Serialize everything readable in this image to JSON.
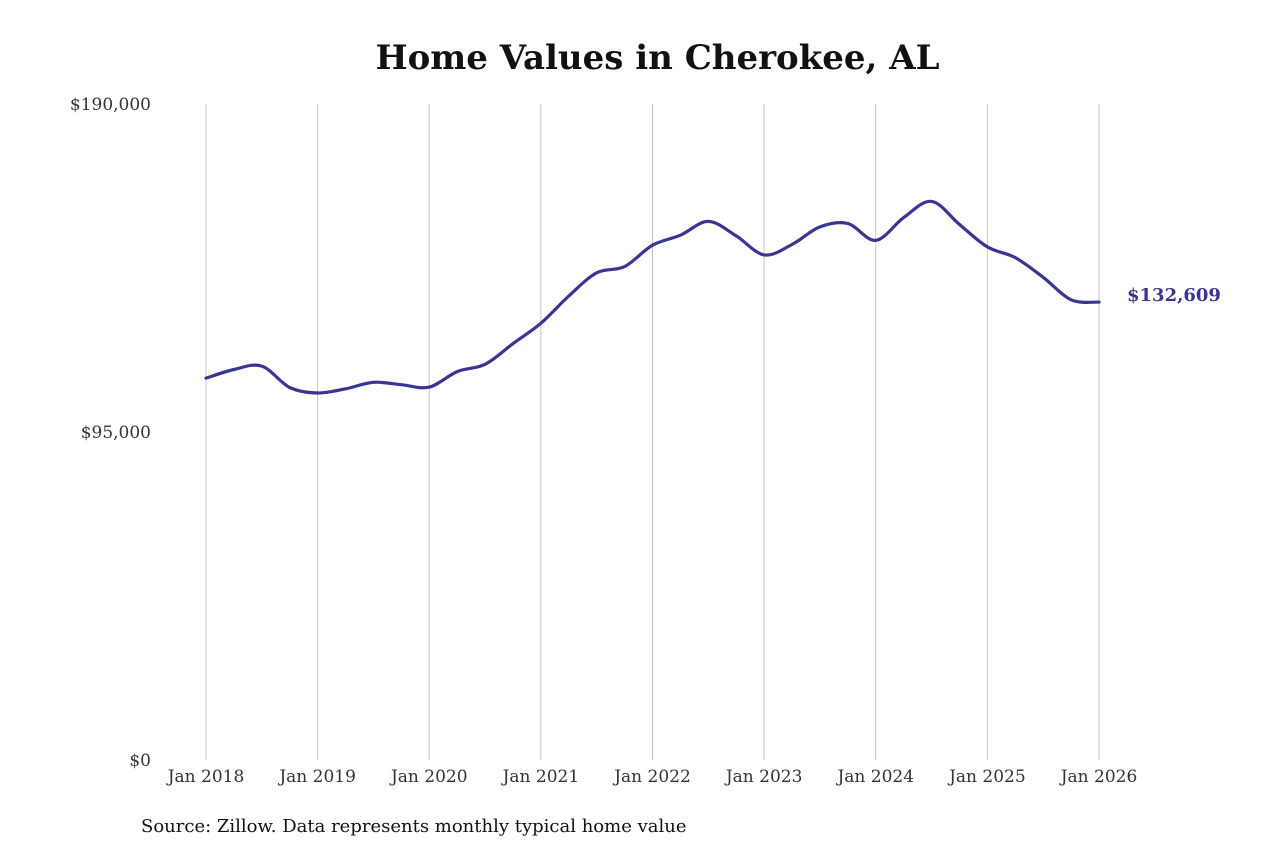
{
  "chart_data": {
    "type": "line",
    "title": "Home Values in Cherokee, AL",
    "xlabel": "",
    "ylabel": "",
    "ylim": [
      0,
      190000
    ],
    "y_ticks": [
      {
        "value": 0,
        "label": "$0"
      },
      {
        "value": 95000,
        "label": "$95,000"
      },
      {
        "value": 190000,
        "label": "$190,000"
      }
    ],
    "x_ticks": [
      {
        "value": "2018-01",
        "label": "Jan 2018"
      },
      {
        "value": "2019-01",
        "label": "Jan 2019"
      },
      {
        "value": "2020-01",
        "label": "Jan 2020"
      },
      {
        "value": "2021-01",
        "label": "Jan 2021"
      },
      {
        "value": "2022-01",
        "label": "Jan 2022"
      },
      {
        "value": "2023-01",
        "label": "Jan 2023"
      },
      {
        "value": "2024-01",
        "label": "Jan 2024"
      },
      {
        "value": "2025-01",
        "label": "Jan 2025"
      },
      {
        "value": "2026-01",
        "label": "Jan 2026"
      }
    ],
    "grid": {
      "vertical": true,
      "horizontal": false
    },
    "series": [
      {
        "color": "#3b3592",
        "x": [
          "2018-01",
          "2018-04",
          "2018-07",
          "2018-10",
          "2019-01",
          "2019-04",
          "2019-07",
          "2019-10",
          "2020-01",
          "2020-04",
          "2020-07",
          "2020-10",
          "2021-01",
          "2021-04",
          "2021-07",
          "2021-10",
          "2022-01",
          "2022-04",
          "2022-07",
          "2022-10",
          "2023-01",
          "2023-04",
          "2023-07",
          "2023-10",
          "2024-01",
          "2024-04",
          "2024-07",
          "2024-10",
          "2025-01",
          "2025-04",
          "2025-07",
          "2025-10",
          "2026-01"
        ],
        "y": [
          110600,
          113100,
          114100,
          107900,
          106300,
          107500,
          109400,
          108700,
          108000,
          112500,
          114600,
          120600,
          126500,
          134400,
          141100,
          142900,
          149100,
          152000,
          156000,
          151800,
          146300,
          149300,
          154400,
          155400,
          150500,
          157100,
          161800,
          155100,
          148600,
          145500,
          139800,
          133300,
          132609
        ]
      }
    ],
    "end_label": "$132,609"
  },
  "source_note": "Source: Zillow. Data represents monthly typical home value"
}
